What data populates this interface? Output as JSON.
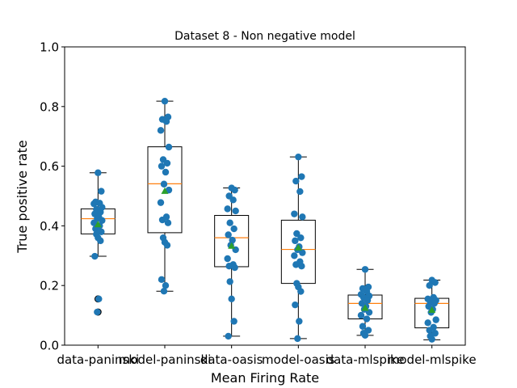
{
  "chart_data": {
    "type": "box",
    "title": "Dataset 8 - Non negative model",
    "xlabel": "Mean Firing Rate",
    "ylabel": "True positive rate",
    "ylim": [
      0.0,
      1.0
    ],
    "yticks": [
      "0.0",
      "0.2",
      "0.4",
      "0.6",
      "0.8",
      "1.0"
    ],
    "grid": false,
    "categories": [
      "data-paninski",
      "model-paninski",
      "data-oasis",
      "model-oasis",
      "data-mlspike",
      "model-mlspike"
    ],
    "colors": {
      "points": "#1f77b4",
      "median": "#ff7f0e",
      "mean": "#2ca02c",
      "box": "#000000"
    },
    "boxes": [
      {
        "whisker_low": 0.298,
        "q1": 0.373,
        "median": 0.424,
        "q3": 0.457,
        "whisker_high": 0.578,
        "mean": 0.405,
        "fliers": [
          0.155,
          0.111
        ]
      },
      {
        "whisker_low": 0.181,
        "q1": 0.377,
        "median": 0.541,
        "q3": 0.665,
        "whisker_high": 0.818,
        "mean": 0.517,
        "fliers": []
      },
      {
        "whisker_low": 0.03,
        "q1": 0.263,
        "median": 0.36,
        "q3": 0.435,
        "whisker_high": 0.527,
        "mean": 0.333,
        "fliers": []
      },
      {
        "whisker_low": 0.022,
        "q1": 0.207,
        "median": 0.321,
        "q3": 0.419,
        "whisker_high": 0.631,
        "mean": 0.327,
        "fliers": []
      },
      {
        "whisker_low": 0.033,
        "q1": 0.088,
        "median": 0.14,
        "q3": 0.168,
        "whisker_high": 0.254,
        "mean": 0.125,
        "fliers": []
      },
      {
        "whisker_low": 0.018,
        "q1": 0.058,
        "median": 0.14,
        "q3": 0.157,
        "whisker_high": 0.218,
        "mean": 0.118,
        "fliers": []
      }
    ],
    "points": [
      [
        0.578,
        0.516,
        0.48,
        0.476,
        0.474,
        0.462,
        0.455,
        0.446,
        0.44,
        0.43,
        0.425,
        0.418,
        0.41,
        0.4,
        0.39,
        0.38,
        0.372,
        0.36,
        0.35,
        0.298,
        0.155,
        0.111
      ],
      [
        0.818,
        0.765,
        0.757,
        0.75,
        0.72,
        0.664,
        0.622,
        0.61,
        0.6,
        0.58,
        0.54,
        0.52,
        0.478,
        0.43,
        0.42,
        0.41,
        0.36,
        0.345,
        0.335,
        0.22,
        0.2,
        0.181
      ],
      [
        0.527,
        0.52,
        0.5,
        0.487,
        0.457,
        0.45,
        0.41,
        0.39,
        0.37,
        0.352,
        0.335,
        0.32,
        0.29,
        0.27,
        0.265,
        0.26,
        0.213,
        0.155,
        0.08,
        0.03
      ],
      [
        0.631,
        0.565,
        0.55,
        0.515,
        0.44,
        0.43,
        0.374,
        0.36,
        0.35,
        0.33,
        0.32,
        0.31,
        0.3,
        0.28,
        0.27,
        0.265,
        0.207,
        0.195,
        0.18,
        0.135,
        0.08,
        0.022
      ],
      [
        0.254,
        0.195,
        0.19,
        0.18,
        0.17,
        0.165,
        0.16,
        0.15,
        0.14,
        0.13,
        0.12,
        0.11,
        0.1,
        0.088,
        0.063,
        0.05,
        0.04,
        0.033
      ],
      [
        0.218,
        0.21,
        0.2,
        0.16,
        0.155,
        0.15,
        0.145,
        0.14,
        0.13,
        0.12,
        0.11,
        0.085,
        0.075,
        0.06,
        0.05,
        0.04,
        0.03,
        0.02
      ]
    ]
  }
}
